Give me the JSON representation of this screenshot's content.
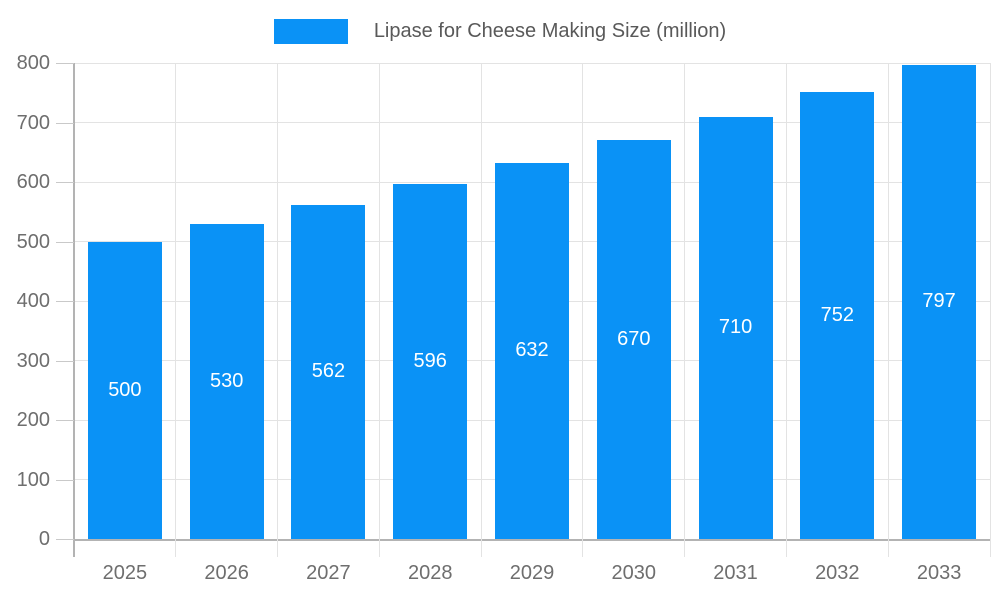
{
  "chart": {
    "legend": {
      "label": "Lipase for Cheese Making Size (million)"
    },
    "colors": {
      "bar": "#0a92f6",
      "axis_line": "#b3b3b3",
      "grid_line": "#e3e3e3",
      "tick_text": "#6e6e6e",
      "legend_text": "#595959",
      "bar_label_text": "#ffffff",
      "background": "#ffffff"
    }
  },
  "chart_data": {
    "type": "bar",
    "title": "Lipase for Cheese Making Size (million)",
    "series_name": "Lipase for Cheese Making Size (million)",
    "categories": [
      "2025",
      "2026",
      "2027",
      "2028",
      "2029",
      "2030",
      "2031",
      "2032",
      "2033"
    ],
    "values": [
      500,
      530,
      562,
      596,
      632,
      670,
      710,
      752,
      797
    ],
    "xlabel": "",
    "ylabel": "",
    "ylim": [
      0,
      800
    ],
    "yticks": [
      0,
      100,
      200,
      300,
      400,
      500,
      600,
      700,
      800
    ],
    "grid": true,
    "legend_position": "top",
    "bar_value_labels": "centered-white"
  }
}
